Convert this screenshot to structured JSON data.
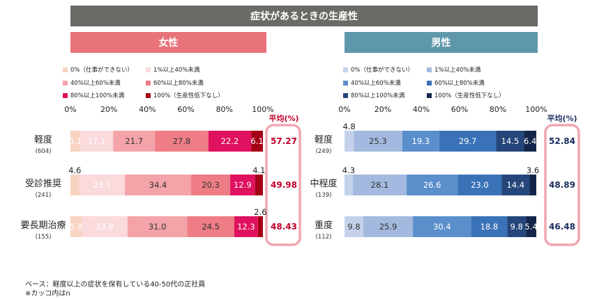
{
  "title": "症状があるときの生産性",
  "footnote1": "ベース：軽度以上の症状を保有している40-50代の正社員",
  "footnote2": "※カッコ内はn",
  "chart_data": [
    {
      "type": "bar",
      "stacked": true,
      "orientation": "horizontal",
      "panel_title": "女性",
      "header_color": "#e8737b",
      "x_ticks": [
        "0%",
        "20%",
        "40%",
        "60%",
        "80%",
        "100%"
      ],
      "xlim": [
        0,
        100
      ],
      "avg_label": "平均(%)",
      "categories": [
        {
          "label": "軽度",
          "n": "(604)"
        },
        {
          "label": "受診推奨",
          "n": "(241)"
        },
        {
          "label": "要長期治療",
          "n": "(155)"
        }
      ],
      "series": [
        {
          "name": "0%（仕事ができない）",
          "color": "#f7d3c0",
          "values": [
            5.1,
            4.6,
            5.8
          ]
        },
        {
          "name": "1%以上40%未満",
          "color": "#fadadd",
          "values": [
            17.1,
            23.7,
            23.9
          ]
        },
        {
          "name": "40%以上60%未満",
          "color": "#f4a3a8",
          "values": [
            21.7,
            34.4,
            31.0
          ]
        },
        {
          "name": "60%以上80%未満",
          "color": "#ee7d86",
          "values": [
            27.8,
            20.3,
            24.5
          ]
        },
        {
          "name": "80%以上100%未満",
          "color": "#e0115f",
          "values": [
            22.2,
            12.9,
            12.3
          ]
        },
        {
          "name": "100%（生産性低下なし）",
          "color": "#a50016",
          "values": [
            6.1,
            4.1,
            2.6
          ]
        }
      ],
      "averages": [
        "57.27",
        "49.98",
        "48.43"
      ],
      "avg_color": "#c0002a"
    },
    {
      "type": "bar",
      "stacked": true,
      "orientation": "horizontal",
      "panel_title": "男性",
      "header_color": "#5f97aa",
      "x_ticks": [
        "0%",
        "20%",
        "40%",
        "60%",
        "80%",
        "100%"
      ],
      "xlim": [
        0,
        100
      ],
      "avg_label": "平均(%)",
      "categories": [
        {
          "label": "軽度",
          "n": "(249)"
        },
        {
          "label": "中程度",
          "n": "(139)"
        },
        {
          "label": "重度",
          "n": "(112)"
        }
      ],
      "series": [
        {
          "name": "0%（仕事ができない）",
          "color": "#c3d2ea",
          "values": [
            4.8,
            4.3,
            9.8
          ]
        },
        {
          "name": "1%以上40%未満",
          "color": "#a3b9df",
          "values": [
            25.3,
            28.1,
            25.9
          ]
        },
        {
          "name": "40%以上60%未満",
          "color": "#5b8fcc",
          "values": [
            19.3,
            26.6,
            30.4
          ]
        },
        {
          "name": "60%以上80%未満",
          "color": "#3a72b8",
          "values": [
            29.7,
            23.0,
            18.8
          ]
        },
        {
          "name": "80%以上100%未満",
          "color": "#24467a",
          "values": [
            14.5,
            14.4,
            9.8
          ]
        },
        {
          "name": "100%（生産性低下なし）",
          "color": "#13264a",
          "values": [
            6.4,
            3.6,
            5.4
          ]
        }
      ],
      "averages": [
        "52.84",
        "48.89",
        "46.48"
      ],
      "avg_color": "#1a2c5c"
    }
  ]
}
